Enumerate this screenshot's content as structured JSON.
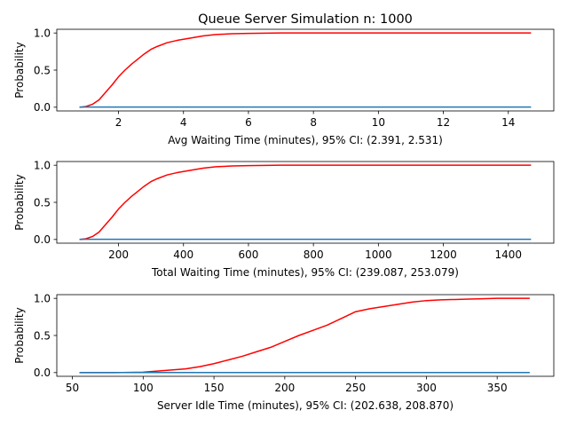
{
  "figure_title": "Queue Server Simulation n: 1000",
  "colors": {
    "cdf": "#ff0000",
    "pdf": "#1f77b4"
  },
  "chart_data": [
    {
      "type": "line",
      "xlabel": "Avg Waiting Time (minutes), 95% CI: (2.391, 2.531)",
      "ylabel": "Probability",
      "xlim": [
        0.1,
        15.4
      ],
      "ylim": [
        -0.05,
        1.05
      ],
      "xticks": [
        2,
        4,
        6,
        8,
        10,
        12,
        14
      ],
      "yticks": [
        0.0,
        0.5,
        1.0
      ],
      "series": [
        {
          "role": "cdf",
          "x": [
            0.8,
            1.0,
            1.2,
            1.4,
            1.6,
            1.8,
            2.0,
            2.2,
            2.4,
            2.6,
            2.8,
            3.0,
            3.2,
            3.5,
            3.8,
            4.2,
            4.6,
            5.0,
            5.5,
            6.0,
            7.0,
            9.0,
            11.0,
            13.0,
            14.7
          ],
          "y": [
            0.0,
            0.01,
            0.04,
            0.1,
            0.2,
            0.3,
            0.41,
            0.5,
            0.58,
            0.65,
            0.72,
            0.78,
            0.82,
            0.87,
            0.9,
            0.93,
            0.96,
            0.98,
            0.99,
            0.995,
            1.0,
            1.0,
            1.0,
            1.0,
            1.0
          ]
        },
        {
          "role": "pdf",
          "x": [
            0.8,
            14.7
          ],
          "y": [
            0.003,
            0.003
          ]
        }
      ]
    },
    {
      "type": "line",
      "xlabel": "Total Waiting Time (minutes), 95% CI: (239.087, 253.079)",
      "ylabel": "Probability",
      "xlim": [
        10,
        1540
      ],
      "ylim": [
        -0.05,
        1.05
      ],
      "xticks": [
        200,
        400,
        600,
        800,
        1000,
        1200,
        1400
      ],
      "yticks": [
        0.0,
        0.5,
        1.0
      ],
      "series": [
        {
          "role": "cdf",
          "x": [
            80,
            100,
            120,
            140,
            160,
            180,
            200,
            220,
            240,
            260,
            280,
            300,
            320,
            350,
            380,
            420,
            460,
            500,
            550,
            600,
            700,
            900,
            1100,
            1300,
            1470
          ],
          "y": [
            0.0,
            0.01,
            0.04,
            0.1,
            0.2,
            0.3,
            0.41,
            0.5,
            0.58,
            0.65,
            0.72,
            0.78,
            0.82,
            0.87,
            0.9,
            0.93,
            0.96,
            0.98,
            0.99,
            0.995,
            1.0,
            1.0,
            1.0,
            1.0,
            1.0
          ]
        },
        {
          "role": "pdf",
          "x": [
            80,
            1470
          ],
          "y": [
            0.002,
            0.002
          ]
        }
      ]
    },
    {
      "type": "line",
      "xlabel": "Server Idle Time (minutes), 95% CI: (202.638, 208.870)",
      "ylabel": "Probability",
      "xlim": [
        39,
        390
      ],
      "ylim": [
        -0.05,
        1.05
      ],
      "xticks": [
        50,
        100,
        150,
        200,
        250,
        300,
        350
      ],
      "yticks": [
        0.0,
        0.5,
        1.0
      ],
      "series": [
        {
          "role": "cdf",
          "x": [
            55,
            80,
            100,
            110,
            120,
            130,
            140,
            150,
            160,
            170,
            180,
            190,
            200,
            210,
            220,
            230,
            240,
            250,
            260,
            270,
            280,
            290,
            300,
            310,
            320,
            330,
            340,
            350,
            360,
            373
          ],
          "y": [
            0.0,
            0.0,
            0.005,
            0.02,
            0.035,
            0.05,
            0.08,
            0.12,
            0.17,
            0.22,
            0.28,
            0.34,
            0.42,
            0.5,
            0.57,
            0.64,
            0.73,
            0.82,
            0.86,
            0.89,
            0.92,
            0.95,
            0.97,
            0.98,
            0.985,
            0.99,
            0.995,
            1.0,
            1.0,
            1.0
          ]
        },
        {
          "role": "pdf",
          "x": [
            55,
            373
          ],
          "y": [
            0.001,
            0.001
          ]
        }
      ]
    }
  ]
}
